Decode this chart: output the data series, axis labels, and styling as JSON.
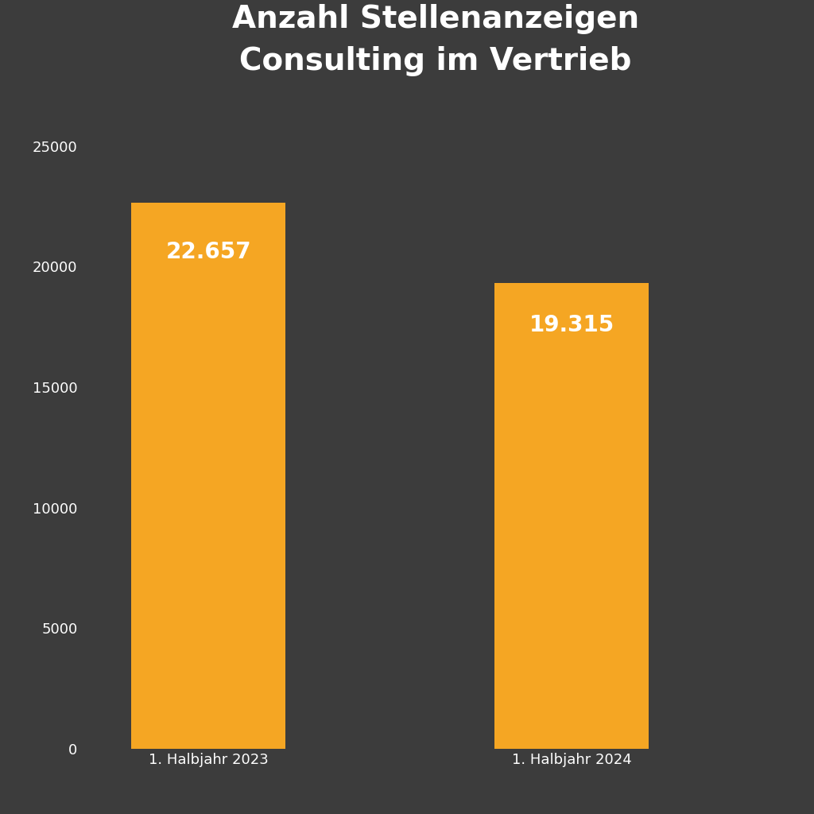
{
  "title": "Anzahl Stellenanzeigen\nConsulting im Vertrieb",
  "categories": [
    "1. Halbjahr 2023",
    "1. Halbjahr 2024"
  ],
  "values": [
    22657,
    19315
  ],
  "labels": [
    "22.657",
    "19.315"
  ],
  "bar_color": "#F5A623",
  "background_color": "#3C3C3C",
  "text_color": "#FFFFFF",
  "title_fontsize": 28,
  "label_fontsize": 20,
  "tick_fontsize": 13,
  "yticks": [
    0,
    5000,
    10000,
    15000,
    20000,
    25000
  ],
  "ylim": [
    0,
    27000
  ],
  "bar_positions": [
    1,
    3
  ],
  "bar_width": 0.85,
  "xlim": [
    0.3,
    4.2
  ]
}
